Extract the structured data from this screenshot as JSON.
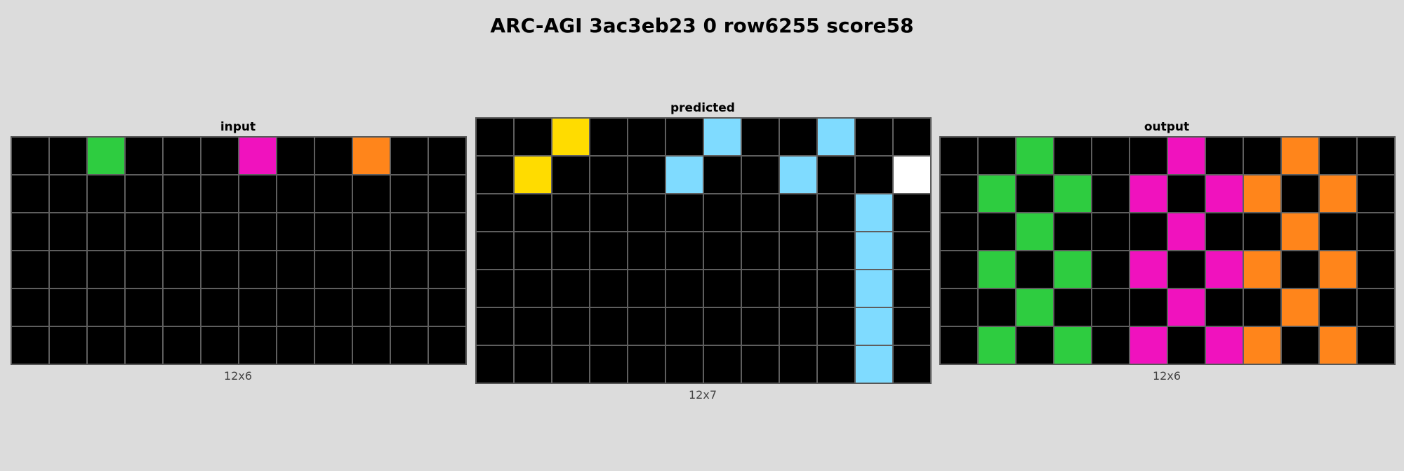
{
  "title": "ARC-AGI 3ac3eb23 0 row6255 score58",
  "palette": {
    "0": "#000000",
    "1": "#1e93ff",
    "2": "#f93c31",
    "3": "#2ecc40",
    "4": "#ffdc00",
    "5": "#999999",
    "6": "#f012be",
    "7": "#ff851b",
    "8": "#7fdbff",
    "9": "#870c25",
    "10": "#ffffff"
  },
  "panels": {
    "input": {
      "label": "input",
      "dims": "12x6",
      "grid": [
        [
          0,
          0,
          3,
          0,
          0,
          0,
          6,
          0,
          0,
          7,
          0,
          0
        ],
        [
          0,
          0,
          0,
          0,
          0,
          0,
          0,
          0,
          0,
          0,
          0,
          0
        ],
        [
          0,
          0,
          0,
          0,
          0,
          0,
          0,
          0,
          0,
          0,
          0,
          0
        ],
        [
          0,
          0,
          0,
          0,
          0,
          0,
          0,
          0,
          0,
          0,
          0,
          0
        ],
        [
          0,
          0,
          0,
          0,
          0,
          0,
          0,
          0,
          0,
          0,
          0,
          0
        ],
        [
          0,
          0,
          0,
          0,
          0,
          0,
          0,
          0,
          0,
          0,
          0,
          0
        ]
      ]
    },
    "predicted": {
      "label": "predicted",
      "dims": "12x7",
      "grid": [
        [
          0,
          0,
          4,
          0,
          0,
          0,
          8,
          0,
          0,
          8,
          0,
          0
        ],
        [
          0,
          4,
          0,
          0,
          0,
          8,
          0,
          0,
          8,
          0,
          0,
          10
        ],
        [
          0,
          0,
          0,
          0,
          0,
          0,
          0,
          0,
          0,
          0,
          8,
          0
        ],
        [
          0,
          0,
          0,
          0,
          0,
          0,
          0,
          0,
          0,
          0,
          8,
          0
        ],
        [
          0,
          0,
          0,
          0,
          0,
          0,
          0,
          0,
          0,
          0,
          8,
          0
        ],
        [
          0,
          0,
          0,
          0,
          0,
          0,
          0,
          0,
          0,
          0,
          8,
          0
        ],
        [
          0,
          0,
          0,
          0,
          0,
          0,
          0,
          0,
          0,
          0,
          8,
          0
        ]
      ]
    },
    "output": {
      "label": "output",
      "dims": "12x6",
      "grid": [
        [
          0,
          0,
          3,
          0,
          0,
          0,
          6,
          0,
          0,
          7,
          0,
          0
        ],
        [
          0,
          3,
          0,
          3,
          0,
          6,
          0,
          6,
          7,
          0,
          7,
          0
        ],
        [
          0,
          0,
          3,
          0,
          0,
          0,
          6,
          0,
          0,
          7,
          0,
          0
        ],
        [
          0,
          3,
          0,
          3,
          0,
          6,
          0,
          6,
          7,
          0,
          7,
          0
        ],
        [
          0,
          0,
          3,
          0,
          0,
          0,
          6,
          0,
          0,
          7,
          0,
          0
        ],
        [
          0,
          3,
          0,
          3,
          0,
          6,
          0,
          6,
          7,
          0,
          7,
          0
        ]
      ]
    }
  }
}
